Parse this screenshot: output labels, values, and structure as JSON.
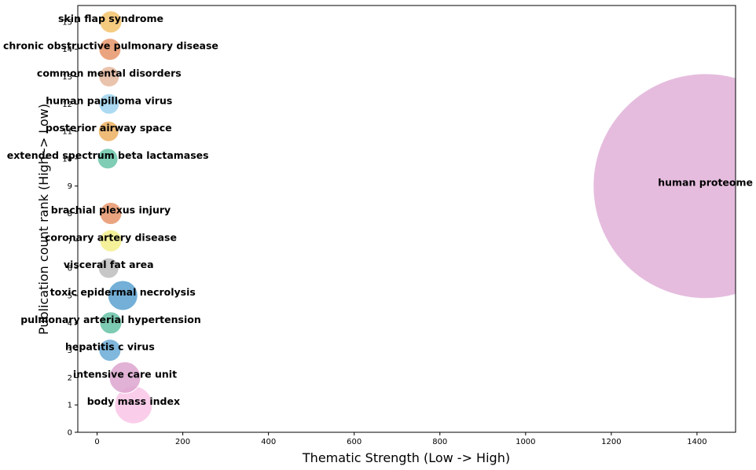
{
  "chart_data": {
    "type": "scatter",
    "title": "",
    "xlabel": "Thematic Strength (Low -> High)",
    "ylabel": "Publication count rank (High -> Low)",
    "xlim": [
      -45,
      1490
    ],
    "ylim": [
      0,
      15.6
    ],
    "xticks": [
      0,
      200,
      400,
      600,
      800,
      1000,
      1200,
      1400
    ],
    "yticks": [
      0,
      1,
      2,
      3,
      4,
      5,
      6,
      7,
      8,
      9,
      10,
      11,
      12,
      13,
      14,
      15
    ],
    "grid": false,
    "legend": "none",
    "points": [
      {
        "label": "body mass index",
        "x": 85,
        "y": 1,
        "size": 48,
        "color": "#f9c6e6"
      },
      {
        "label": "intensive care unit",
        "x": 65,
        "y": 2,
        "size": 40,
        "color": "#dca4cf"
      },
      {
        "label": "hepatitis c virus",
        "x": 30,
        "y": 3,
        "size": 28,
        "color": "#6aaad6"
      },
      {
        "label": "pulmonary arterial hypertension",
        "x": 32,
        "y": 4,
        "size": 28,
        "color": "#66c2a4"
      },
      {
        "label": "toxic epidermal necrolysis",
        "x": 60,
        "y": 5,
        "size": 38,
        "color": "#5ba1d0"
      },
      {
        "label": "visceral fat area",
        "x": 27,
        "y": 6,
        "size": 26,
        "color": "#bdbdbd"
      },
      {
        "label": "coronary artery disease",
        "x": 32,
        "y": 7,
        "size": 28,
        "color": "#f3ef88"
      },
      {
        "label": "brachial plexus injury",
        "x": 32,
        "y": 8,
        "size": 28,
        "color": "#e6956a"
      },
      {
        "label": "human proteome",
        "x": 1420,
        "y": 9,
        "size": 286,
        "color": "#e0b0d8"
      },
      {
        "label": "extended spectrum beta lactamases",
        "x": 25,
        "y": 10,
        "size": 26,
        "color": "#6ac4a8"
      },
      {
        "label": "posterior airway space",
        "x": 27,
        "y": 11,
        "size": 26,
        "color": "#ebb060"
      },
      {
        "label": "human papilloma virus",
        "x": 28,
        "y": 12,
        "size": 26,
        "color": "#9ed3f0"
      },
      {
        "label": "common mental disorders",
        "x": 28,
        "y": 13,
        "size": 26,
        "color": "#e6b89e"
      },
      {
        "label": "chronic obstructive pulmonary disease",
        "x": 30,
        "y": 14,
        "size": 28,
        "color": "#e6956a"
      },
      {
        "label": "skin flap syndrome",
        "x": 32,
        "y": 15,
        "size": 28,
        "color": "#f3c26a"
      }
    ]
  }
}
